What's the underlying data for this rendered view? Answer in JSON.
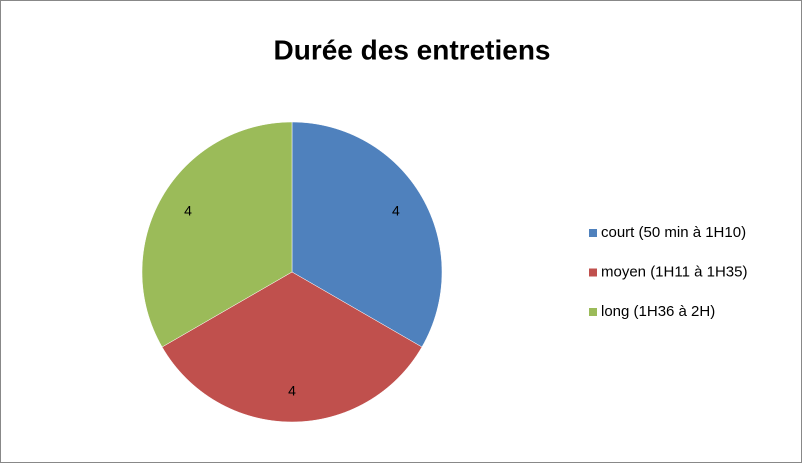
{
  "chart_data": {
    "type": "pie",
    "title": "Durée des entretiens",
    "categories": [
      "court (50 min à 1H10)",
      "moyen (1H11 à 1H35)",
      "long (1H36 à 2H)"
    ],
    "values": [
      4,
      4,
      4
    ],
    "colors": [
      "#4f81bd",
      "#c0504d",
      "#9bbb59"
    ],
    "legend": "right"
  }
}
